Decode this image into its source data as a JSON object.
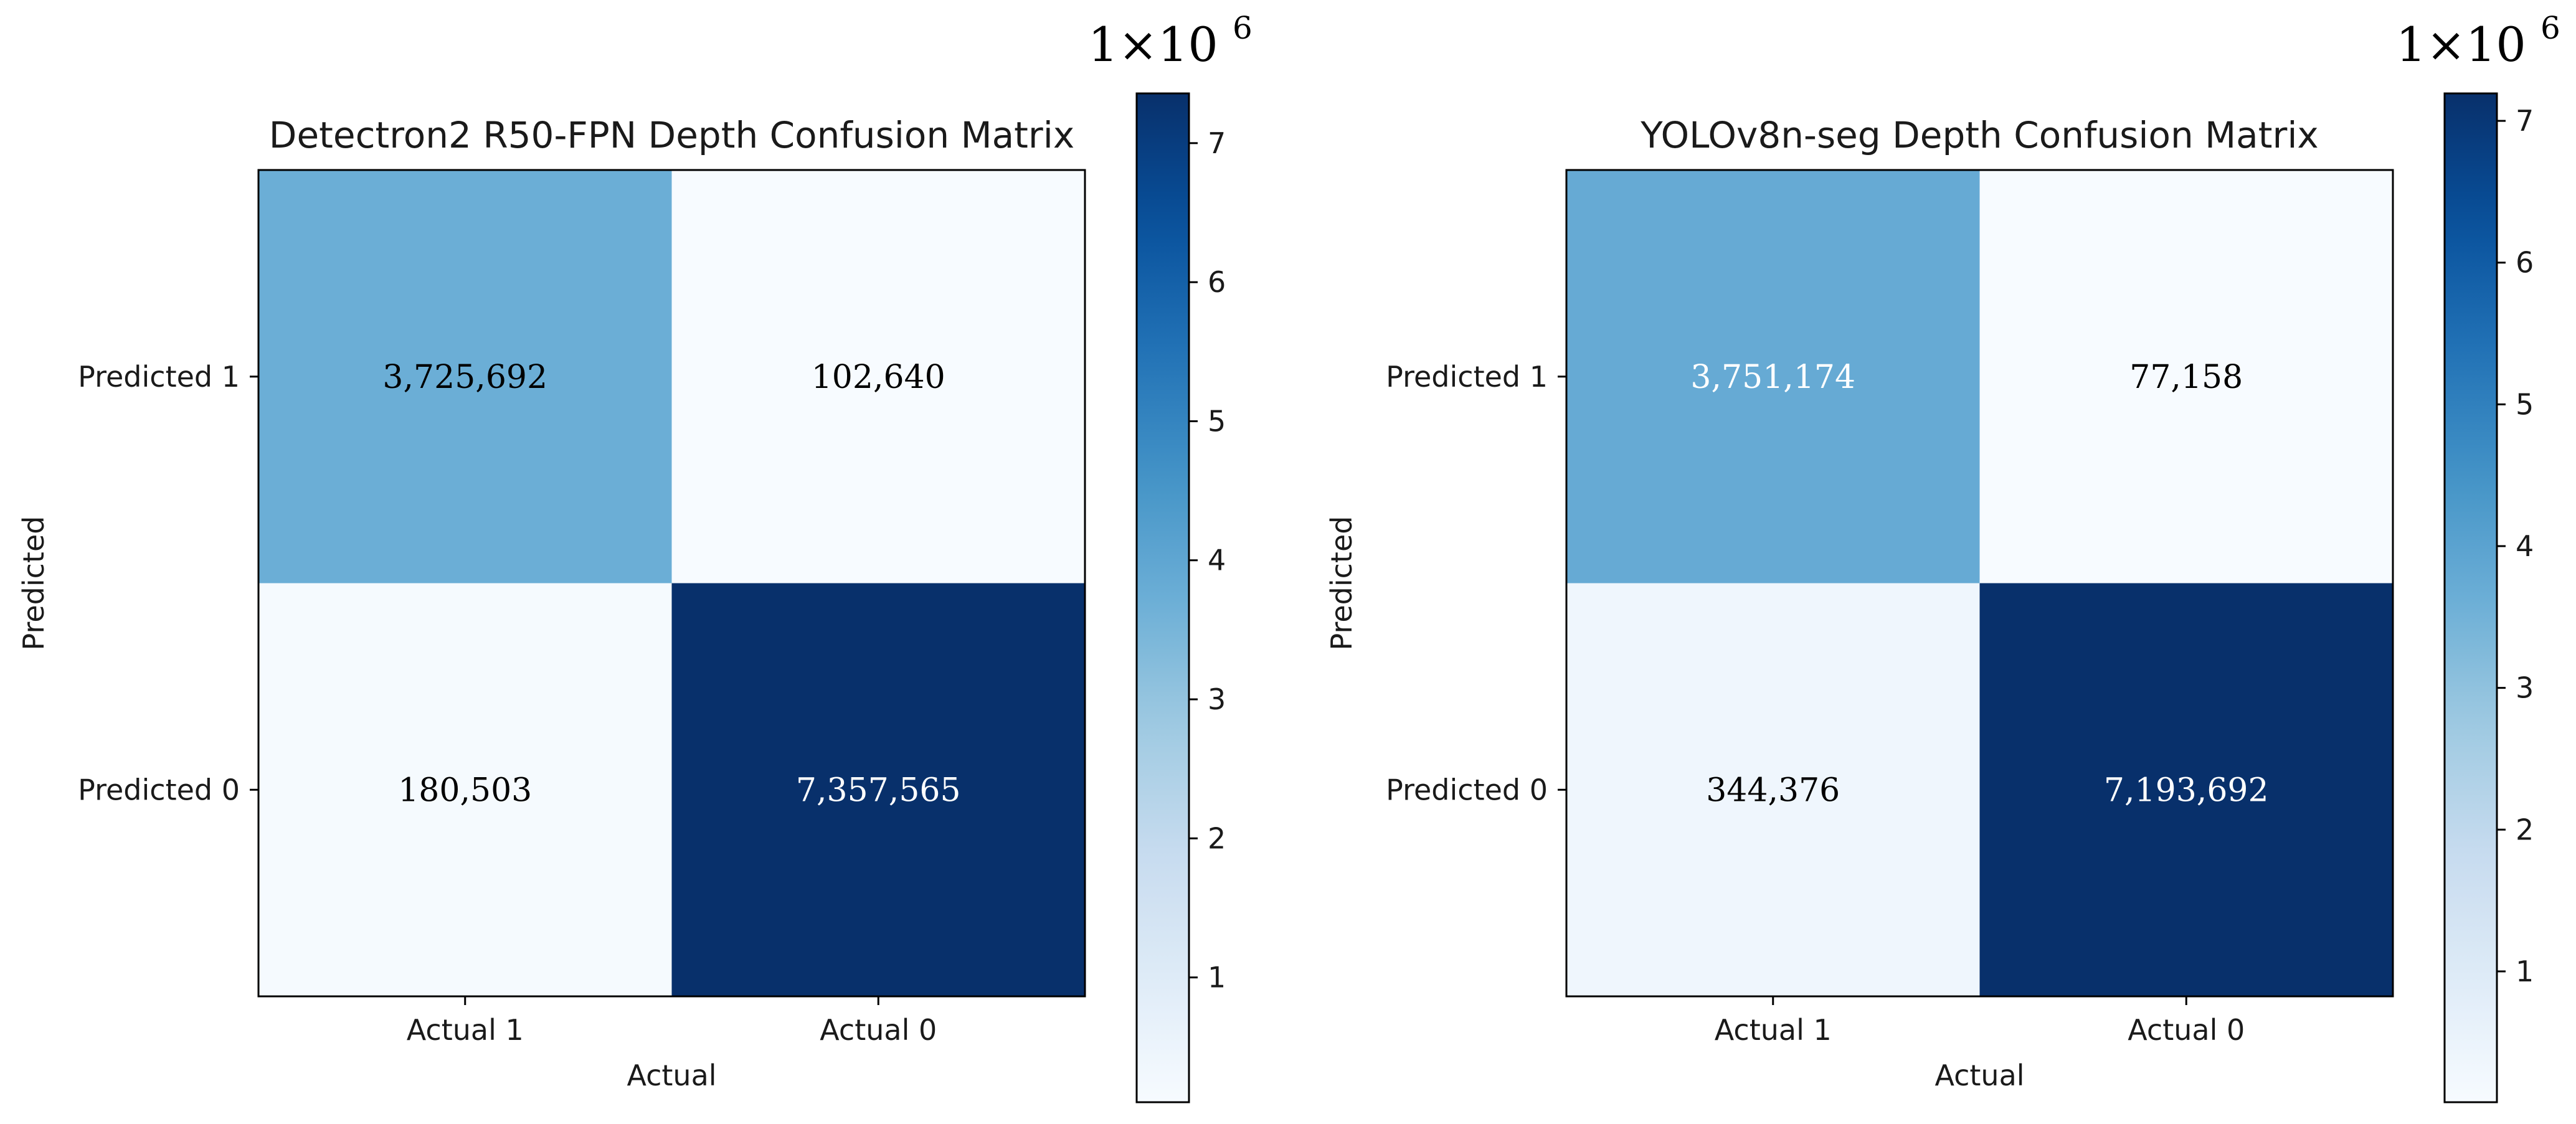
{
  "chart_data": [
    {
      "type": "heatmap",
      "title": "Detectron2 R50-FPN Depth Confusion Matrix",
      "xlabel": "Actual",
      "ylabel": "Predicted",
      "x_categories": [
        "Actual 1",
        "Actual 0"
      ],
      "y_categories": [
        "Predicted 1",
        "Predicted 0"
      ],
      "values": [
        [
          3725692,
          102640
        ],
        [
          180503,
          7357565
        ]
      ],
      "value_labels": [
        [
          "3,725,692",
          "102,640"
        ],
        [
          "180,503",
          "7,357,565"
        ]
      ],
      "colorbar": {
        "scale_label": "1×10",
        "scale_exponent": "6",
        "vmin": 102640,
        "vmax": 7357565,
        "ticks": [
          1,
          2,
          3,
          4,
          5,
          6,
          7
        ],
        "tick_labels": [
          "1",
          "2",
          "3",
          "4",
          "5",
          "6",
          "7"
        ]
      },
      "colormap": "Blues"
    },
    {
      "type": "heatmap",
      "title": "YOLOv8n-seg Depth Confusion Matrix",
      "xlabel": "Actual",
      "ylabel": "Predicted",
      "x_categories": [
        "Actual 1",
        "Actual 0"
      ],
      "y_categories": [
        "Predicted 1",
        "Predicted 0"
      ],
      "values": [
        [
          3751174,
          77158
        ],
        [
          344376,
          7193692
        ]
      ],
      "value_labels": [
        [
          "3,751,174",
          "77,158"
        ],
        [
          "344,376",
          "7,193,692"
        ]
      ],
      "colorbar": {
        "scale_label": "1×10",
        "scale_exponent": "6",
        "vmin": 77158,
        "vmax": 7193692,
        "ticks": [
          1,
          2,
          3,
          4,
          5,
          6,
          7
        ],
        "tick_labels": [
          "1",
          "2",
          "3",
          "4",
          "5",
          "6",
          "7"
        ]
      },
      "colormap": "Blues"
    }
  ]
}
